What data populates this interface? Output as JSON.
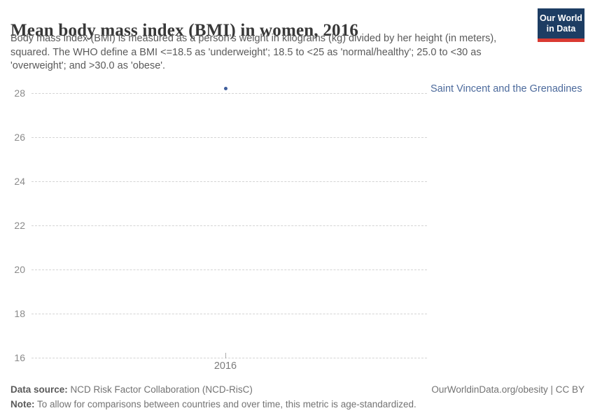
{
  "header": {
    "title": "Mean body mass index (BMI) in women, 2016",
    "subtitle_lines": [
      "Body mass index (BMI) is measured as a person's weight in kilograms (kg) divided by her height (in meters),",
      "squared. The WHO define a BMI <=18.5 as 'underweight'; 18.5 to <25 as 'normal/healthy'; 25.0 to <30 as",
      "'overweight'; and >30.0 as 'obese'."
    ],
    "logo": {
      "line1": "Our World",
      "line2": "in Data",
      "bg_color": "#1d3d63",
      "accent_color": "#d93a32"
    }
  },
  "chart_data": {
    "type": "scatter",
    "title": "Mean body mass index (BMI) in women, 2016",
    "xlabel": "",
    "ylabel": "",
    "ylim": [
      16,
      28
    ],
    "yticks": [
      16,
      18,
      20,
      22,
      24,
      26,
      28
    ],
    "xticks": [
      "2016"
    ],
    "grid": "horizontal-dashed",
    "legend_position": "right-of-point",
    "entity_label": "Saint Vincent and the Grenadines",
    "series": [
      {
        "name": "Saint Vincent and the Grenadines",
        "points": [
          {
            "x": 2016,
            "y": 28.2
          }
        ]
      }
    ],
    "colors": {
      "series": "#3f5e9c",
      "entity_label": "#4c6a9c",
      "grid": "#d4d4d4",
      "tick_label": "#8b8b8b"
    }
  },
  "footer": {
    "data_source_label": "Data source:",
    "data_source_value": " NCD Risk Factor Collaboration (NCD-RisC)",
    "rights": "OurWorldinData.org/obesity | CC BY",
    "note_label": "Note:",
    "note_value": " To allow for comparisons between countries and over time, this metric is age-standardized."
  }
}
